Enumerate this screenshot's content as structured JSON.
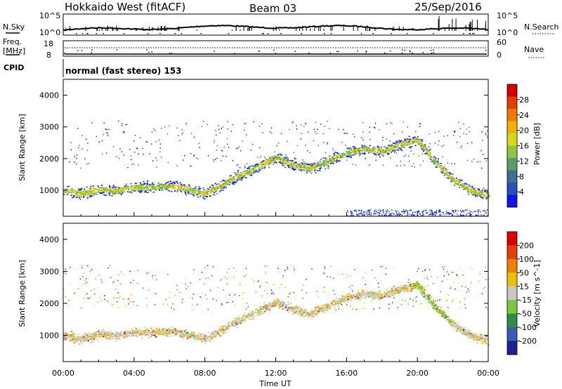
{
  "header": {
    "station": "Hokkaido West (fitACF)",
    "beam": "Beam 03",
    "date": "25/Sep/2016"
  },
  "status_panels": {
    "nsky_label": "N.Sky",
    "nsky_ticks": [
      "10^5",
      "10^0"
    ],
    "nsearch_label": "N.Search",
    "nsearch_ticks": [
      "10^5",
      "10^0"
    ],
    "freq_label_top": "Freq.",
    "freq_label_bottom": "[MHz]",
    "freq_ticks": [
      "18",
      "8"
    ],
    "nave_label": "Nave",
    "nave_ticks": [
      "60",
      "0"
    ],
    "cpid_label": "CPID",
    "cpid_text": "normal (fast stereo) 153"
  },
  "chart_data": [
    {
      "type": "heatmap",
      "name": "power",
      "ylabel": "Slant Range [km]",
      "xlabel": "",
      "ylim": [
        180,
        4500
      ],
      "yticks": [
        1000,
        2000,
        3000,
        4000
      ],
      "xlim": [
        0,
        24
      ],
      "xticks": [
        "00:00",
        "04:00",
        "08:00",
        "12:00",
        "16:00",
        "20:00",
        "00:00"
      ],
      "colorbar": {
        "label": "Power [dB]",
        "ticks": [
          "28",
          "24",
          "20",
          "16",
          "12",
          "8",
          "4"
        ],
        "colors": [
          "#1414e6",
          "#2a4fb8",
          "#3d6e94",
          "#5a9a6e",
          "#8cc63f",
          "#d6d61e",
          "#f0b400",
          "#f07800",
          "#e63c00",
          "#d20000"
        ]
      },
      "scatter_band": {
        "center_range_km": [
          [
            0,
            1000
          ],
          [
            1,
            900
          ],
          [
            2,
            1050
          ],
          [
            3,
            1000
          ],
          [
            4,
            1100
          ],
          [
            5,
            1100
          ],
          [
            6,
            1150
          ],
          [
            7,
            1050
          ],
          [
            8,
            900
          ],
          [
            9,
            1200
          ],
          [
            10,
            1500
          ],
          [
            11,
            1750
          ],
          [
            12,
            2050
          ],
          [
            13,
            1800
          ],
          [
            14,
            1700
          ],
          [
            15,
            1950
          ],
          [
            16,
            2200
          ],
          [
            17,
            2300
          ],
          [
            18,
            2250
          ],
          [
            19,
            2450
          ],
          [
            20,
            2600
          ],
          [
            21,
            1900
          ],
          [
            22,
            1350
          ],
          [
            23,
            1000
          ],
          [
            24,
            850
          ]
        ],
        "echo_limit_km": 3000
      }
    },
    {
      "type": "heatmap",
      "name": "velocity",
      "ylabel": "Slant Range [km]",
      "xlabel": "Time UT",
      "ylim": [
        180,
        4500
      ],
      "yticks": [
        1000,
        2000,
        3000,
        4000
      ],
      "xlim": [
        0,
        24
      ],
      "xticks": [
        "00:00",
        "04:00",
        "08:00",
        "12:00",
        "16:00",
        "20:00",
        "00:00"
      ],
      "colorbar": {
        "label": "Velocity [m s^-1]",
        "ticks": [
          "200",
          "100",
          "50",
          "15",
          "-15",
          "-50",
          "-100",
          "-200"
        ],
        "colors": [
          "#1e1e96",
          "#3c5ab4",
          "#2e8c46",
          "#7cc83c",
          "#c8c8c8",
          "#f0c000",
          "#f08000",
          "#e64000",
          "#dc0000"
        ]
      }
    }
  ]
}
